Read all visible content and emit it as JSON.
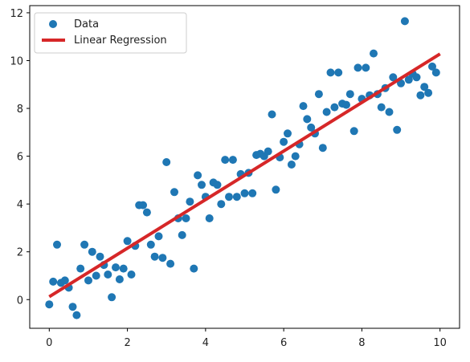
{
  "chart_data": {
    "type": "scatter",
    "title": "",
    "xlabel": "",
    "ylabel": "",
    "xlim": [
      -0.5,
      10.5
    ],
    "ylim": [
      -1.2,
      12.3
    ],
    "xticks": [
      0,
      2,
      4,
      6,
      8,
      10
    ],
    "yticks": [
      0,
      2,
      4,
      6,
      8,
      10,
      12
    ],
    "xtick_labels": [
      "0",
      "2",
      "4",
      "6",
      "8",
      "10"
    ],
    "ytick_labels": [
      "0",
      "2",
      "4",
      "6",
      "8",
      "10",
      "12"
    ],
    "grid": false,
    "legend_position": "top-left",
    "colors": {
      "data": "#1f77b4",
      "line": "#d62728"
    },
    "series": [
      {
        "name": "Data",
        "type": "scatter",
        "points": [
          [
            0.0,
            -0.2
          ],
          [
            0.1,
            0.75
          ],
          [
            0.2,
            2.3
          ],
          [
            0.3,
            0.7
          ],
          [
            0.4,
            0.8
          ],
          [
            0.5,
            0.5
          ],
          [
            0.6,
            -0.3
          ],
          [
            0.7,
            -0.65
          ],
          [
            0.8,
            1.3
          ],
          [
            0.9,
            2.3
          ],
          [
            1.0,
            0.8
          ],
          [
            1.1,
            2.0
          ],
          [
            1.2,
            1.0
          ],
          [
            1.3,
            1.8
          ],
          [
            1.4,
            1.45
          ],
          [
            1.5,
            1.05
          ],
          [
            1.6,
            0.1
          ],
          [
            1.7,
            1.35
          ],
          [
            1.8,
            0.85
          ],
          [
            1.9,
            1.3
          ],
          [
            2.0,
            2.45
          ],
          [
            2.1,
            1.05
          ],
          [
            2.2,
            2.25
          ],
          [
            2.3,
            3.95
          ],
          [
            2.4,
            3.95
          ],
          [
            2.5,
            3.65
          ],
          [
            2.6,
            2.3
          ],
          [
            2.7,
            1.8
          ],
          [
            2.8,
            2.65
          ],
          [
            2.9,
            1.75
          ],
          [
            3.0,
            5.75
          ],
          [
            3.1,
            1.5
          ],
          [
            3.2,
            4.5
          ],
          [
            3.3,
            3.4
          ],
          [
            3.4,
            2.7
          ],
          [
            3.5,
            3.4
          ],
          [
            3.6,
            4.1
          ],
          [
            3.7,
            1.3
          ],
          [
            3.8,
            5.2
          ],
          [
            3.9,
            4.8
          ],
          [
            4.0,
            4.3
          ],
          [
            4.1,
            3.4
          ],
          [
            4.2,
            4.9
          ],
          [
            4.3,
            4.8
          ],
          [
            4.4,
            4.0
          ],
          [
            4.5,
            5.85
          ],
          [
            4.6,
            4.3
          ],
          [
            4.7,
            5.85
          ],
          [
            4.8,
            4.3
          ],
          [
            4.9,
            5.25
          ],
          [
            5.0,
            4.45
          ],
          [
            5.1,
            5.3
          ],
          [
            5.2,
            4.45
          ],
          [
            5.3,
            6.05
          ],
          [
            5.4,
            6.1
          ],
          [
            5.5,
            6.0
          ],
          [
            5.6,
            6.2
          ],
          [
            5.7,
            7.75
          ],
          [
            5.8,
            4.6
          ],
          [
            5.9,
            5.95
          ],
          [
            6.0,
            6.6
          ],
          [
            6.1,
            6.95
          ],
          [
            6.2,
            5.65
          ],
          [
            6.3,
            6.0
          ],
          [
            6.4,
            6.5
          ],
          [
            6.5,
            8.1
          ],
          [
            6.6,
            7.55
          ],
          [
            6.7,
            7.2
          ],
          [
            6.8,
            6.95
          ],
          [
            6.9,
            8.6
          ],
          [
            7.0,
            6.35
          ],
          [
            7.1,
            7.85
          ],
          [
            7.2,
            9.5
          ],
          [
            7.3,
            8.05
          ],
          [
            7.4,
            9.5
          ],
          [
            7.5,
            8.2
          ],
          [
            7.6,
            8.15
          ],
          [
            7.7,
            8.6
          ],
          [
            7.8,
            7.05
          ],
          [
            7.9,
            9.7
          ],
          [
            8.0,
            8.4
          ],
          [
            8.1,
            9.7
          ],
          [
            8.2,
            8.55
          ],
          [
            8.3,
            10.3
          ],
          [
            8.4,
            8.6
          ],
          [
            8.5,
            8.05
          ],
          [
            8.6,
            8.85
          ],
          [
            8.7,
            7.85
          ],
          [
            8.8,
            9.3
          ],
          [
            8.9,
            7.1
          ],
          [
            9.0,
            9.05
          ],
          [
            9.1,
            11.65
          ],
          [
            9.2,
            9.2
          ],
          [
            9.3,
            9.45
          ],
          [
            9.4,
            9.3
          ],
          [
            9.5,
            8.55
          ],
          [
            9.6,
            8.9
          ],
          [
            9.7,
            8.65
          ],
          [
            9.8,
            9.75
          ],
          [
            9.9,
            9.5
          ]
        ]
      },
      {
        "name": "Linear Regression",
        "type": "line",
        "points": [
          [
            0.0,
            0.12
          ],
          [
            10.0,
            10.28
          ]
        ]
      }
    ]
  }
}
